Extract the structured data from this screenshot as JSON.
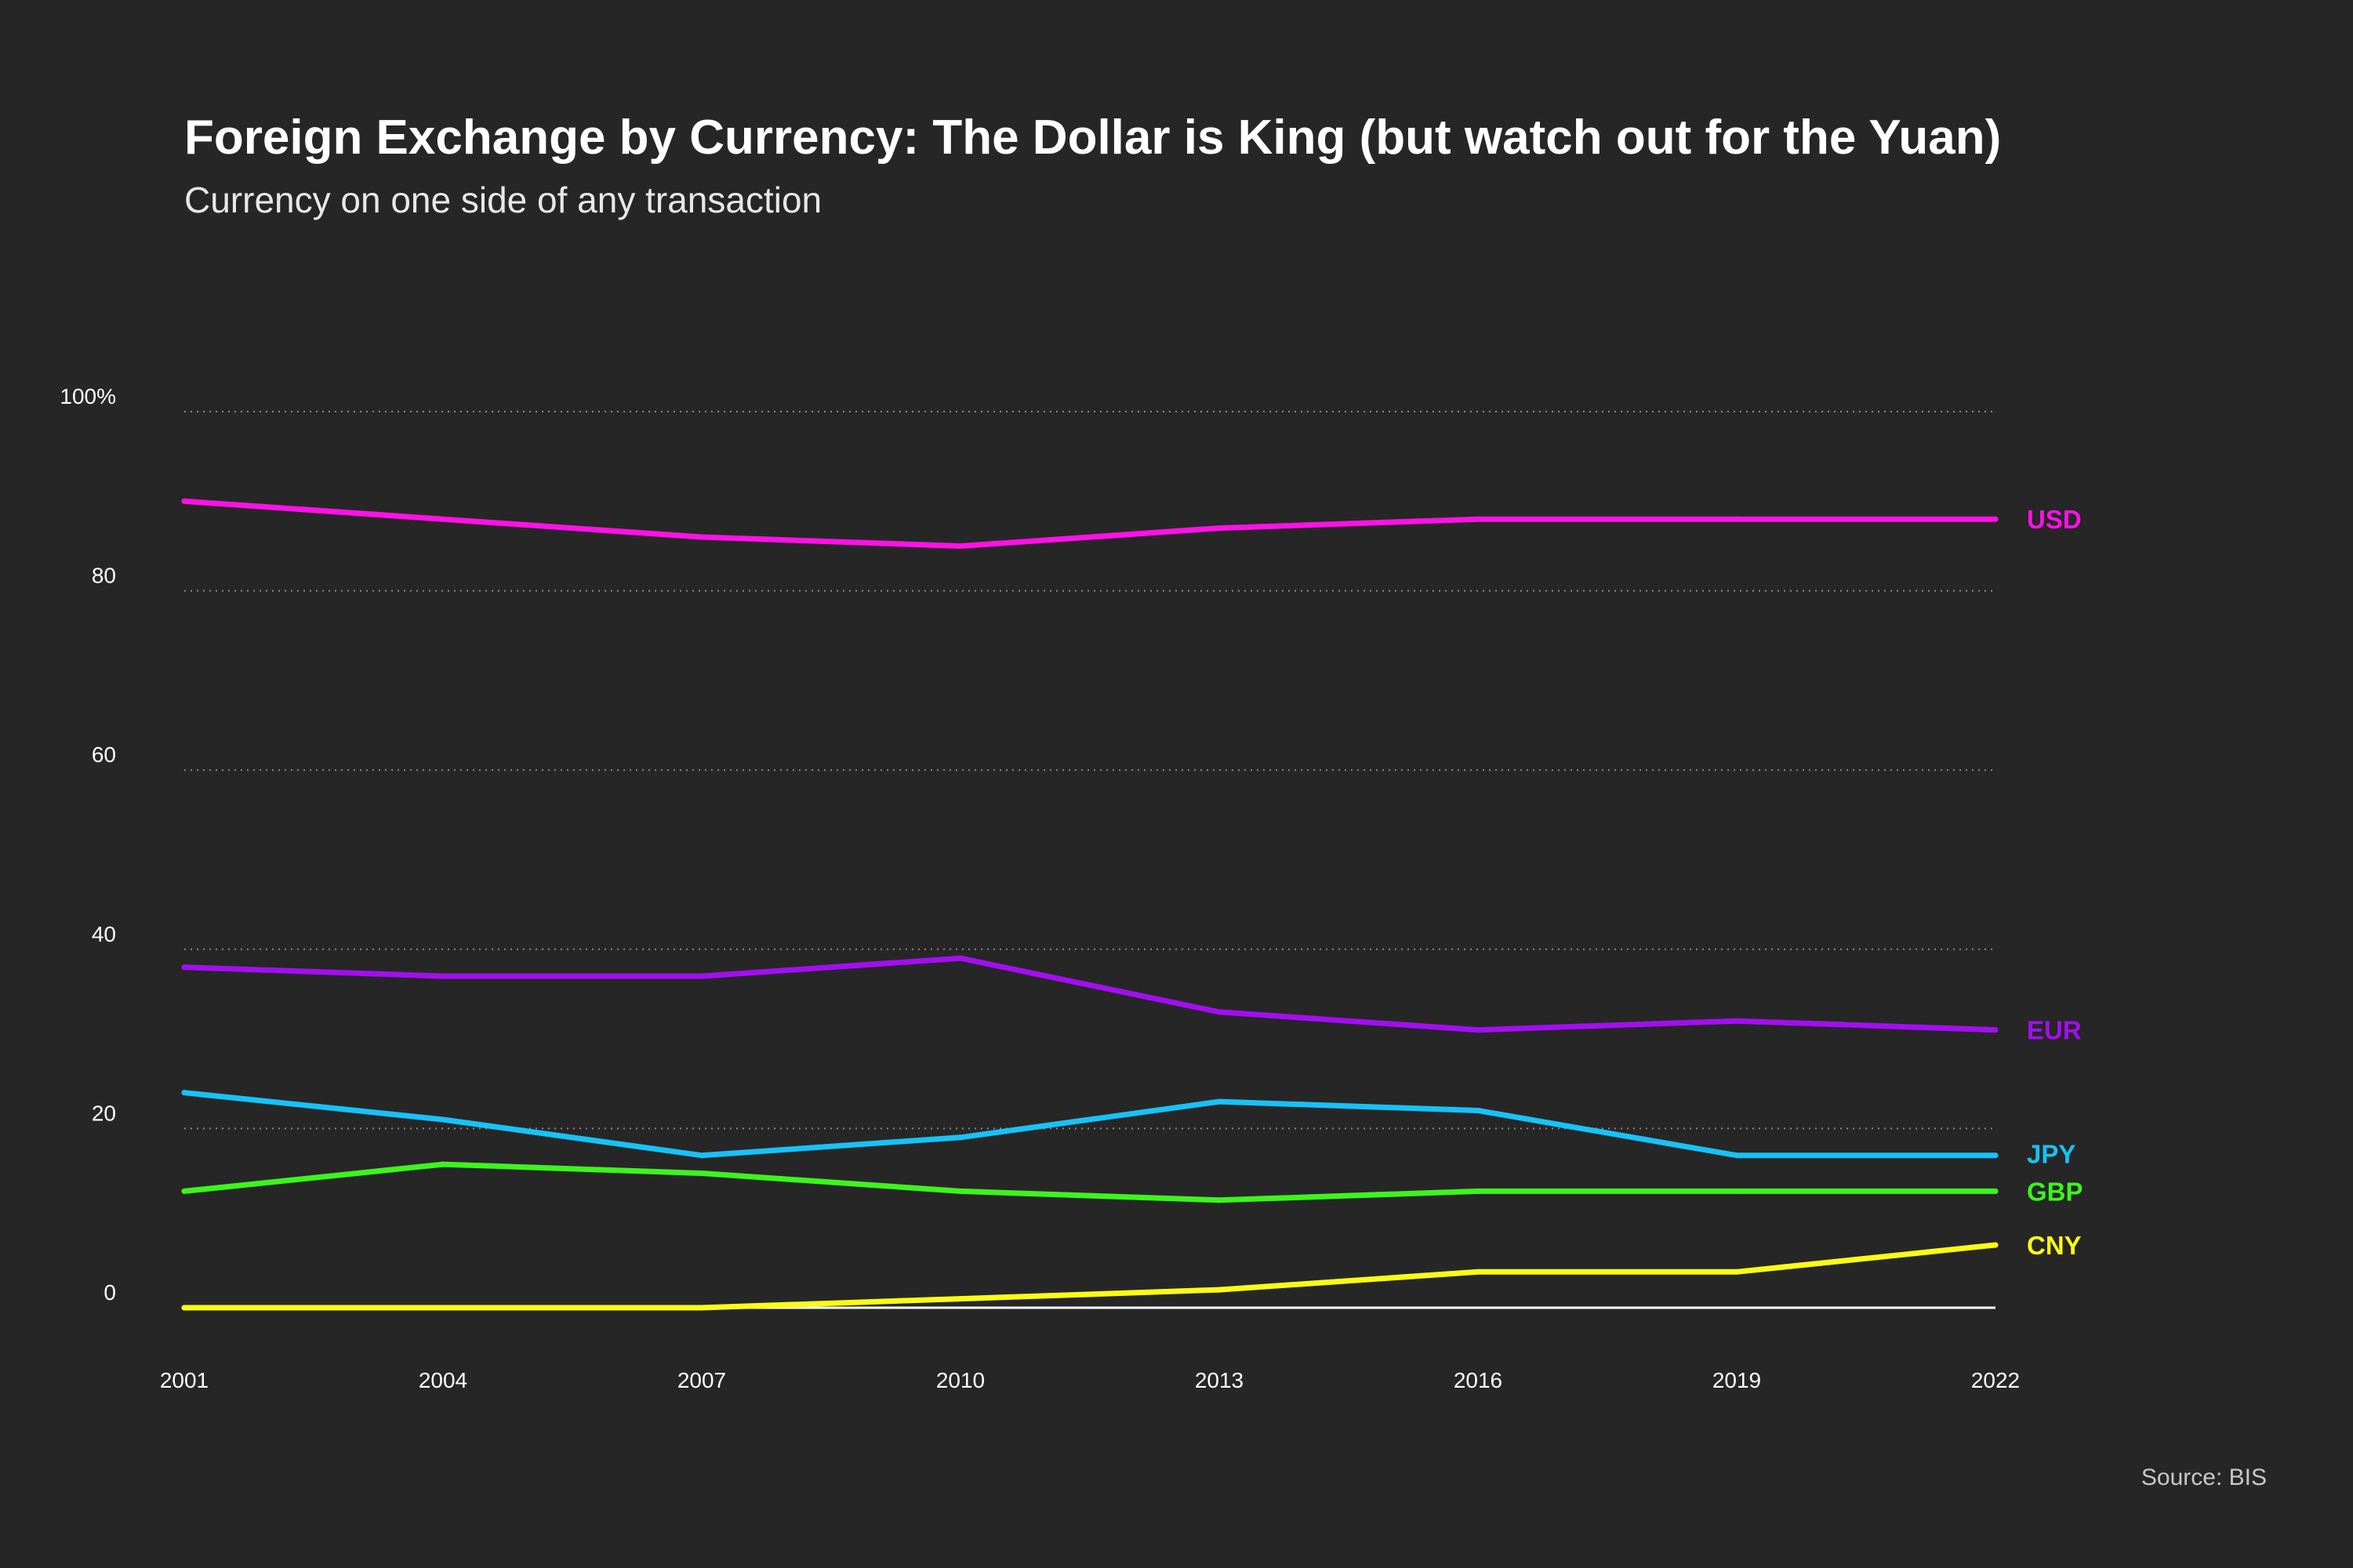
{
  "title": "Foreign Exchange by Currency: The Dollar is King (but watch out for the Yuan)",
  "subtitle": "Currency on one side of any transaction",
  "source": "Source: BIS",
  "colors": {
    "background": "#262626",
    "grid": "#8a8a8a",
    "baseline": "#ffffff",
    "text": "#ffffff"
  },
  "chart_data": {
    "type": "line",
    "x": [
      2001,
      2004,
      2007,
      2010,
      2013,
      2016,
      2019,
      2022
    ],
    "x_tick_labels": [
      "2001",
      "2004",
      "2007",
      "2010",
      "2013",
      "2016",
      "2019",
      "2022"
    ],
    "y_ticks": [
      0,
      20,
      40,
      60,
      80,
      100
    ],
    "y_tick_labels": [
      "0",
      "20",
      "40",
      "60",
      "80",
      "100%"
    ],
    "ylim": [
      0,
      100
    ],
    "grid": true,
    "legend": "direct labels at line ends (right)",
    "series": [
      {
        "name": "USD",
        "color": "#ff11e6",
        "values": [
          90,
          88,
          86,
          85,
          87,
          88,
          88,
          88
        ]
      },
      {
        "name": "EUR",
        "color": "#a30ef0",
        "values": [
          38,
          37,
          37,
          39,
          33,
          31,
          32,
          31
        ]
      },
      {
        "name": "JPY",
        "color": "#17c2f7",
        "values": [
          24,
          21,
          17,
          19,
          23,
          22,
          17,
          17
        ]
      },
      {
        "name": "GBP",
        "color": "#3cf51c",
        "values": [
          13,
          16,
          15,
          13,
          12,
          13,
          13,
          13
        ]
      },
      {
        "name": "CNY",
        "color": "#fbfb14",
        "values": [
          0,
          0,
          0,
          1,
          2,
          4,
          4,
          7
        ]
      }
    ]
  }
}
